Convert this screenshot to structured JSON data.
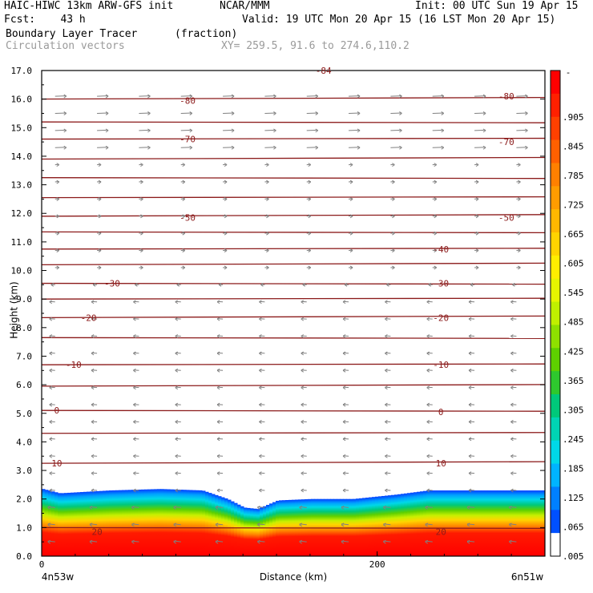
{
  "header": {
    "model": "HAIC-HIWC 13km ARW-GFS init",
    "org": "NCAR/MMM",
    "init": "Init: 00 UTC Sun 19 Apr 15",
    "fcst": "Fcst:    43 h",
    "valid": "Valid: 19 UTC Mon 20 Apr 15 (16 LST Mon 20 Apr 15)",
    "field": "Boundary Layer Tracer",
    "units": "(fraction)",
    "vectors": "Circulation vectors",
    "xy": "XY= 259.5, 91.6 to 274.6,110.2"
  },
  "chart_data": {
    "type": "heatmap",
    "ylabel": "Height (km)",
    "xlabel": "Distance (km)",
    "xlim": [
      0,
      300
    ],
    "ylim": [
      0,
      17
    ],
    "yticks": [
      "0.0",
      "1.0",
      "2.0",
      "3.0",
      "4.0",
      "5.0",
      "6.0",
      "7.0",
      "8.0",
      "9.0",
      "10.0",
      "11.0",
      "12.0",
      "13.0",
      "14.0",
      "15.0",
      "16.0",
      "17.0"
    ],
    "xticks": [
      {
        "value": 0,
        "label": "0"
      },
      {
        "value": 200,
        "label": "200"
      }
    ],
    "endpoint_labels": {
      "left": "4n53w",
      "right": "6n51w"
    },
    "colorbar": {
      "labels": [
        ".905",
        ".845",
        ".785",
        ".725",
        ".665",
        ".605",
        ".545",
        ".485",
        ".425",
        ".365",
        ".305",
        ".245",
        ".185",
        ".125",
        ".065",
        ".005"
      ],
      "top_label": "-",
      "colors": [
        "#ff0000",
        "#ff2000",
        "#ff4000",
        "#ff6000",
        "#ff8000",
        "#ff9c00",
        "#ffb800",
        "#ffd400",
        "#ffee00",
        "#e6f500",
        "#c0f000",
        "#8ee000",
        "#5ed000",
        "#2ec82e",
        "#00c87a",
        "#00d4b4",
        "#00d8e8",
        "#00b4ff",
        "#0080ff",
        "#0050ff",
        "#ffffff"
      ]
    },
    "boundary_layer_top": [
      [
        0,
        2.35
      ],
      [
        10,
        2.2
      ],
      [
        25,
        2.25
      ],
      [
        40,
        2.3
      ],
      [
        70,
        2.35
      ],
      [
        95,
        2.3
      ],
      [
        110,
        2.0
      ],
      [
        120,
        1.7
      ],
      [
        128,
        1.65
      ],
      [
        140,
        1.95
      ],
      [
        160,
        2.0
      ],
      [
        185,
        2.0
      ],
      [
        210,
        2.15
      ],
      [
        230,
        2.3
      ],
      [
        260,
        2.3
      ],
      [
        300,
        2.3
      ]
    ],
    "isotherm_labels": [
      {
        "label": "-84",
        "x": 168,
        "y": 17.0
      },
      {
        "label": "-80",
        "x": 87,
        "y": 15.95
      },
      {
        "label": "-80",
        "x": 277,
        "y": 16.1
      },
      {
        "label": "-70",
        "x": 87,
        "y": 14.6
      },
      {
        "label": "-70",
        "x": 277,
        "y": 14.5
      },
      {
        "label": "-50",
        "x": 87,
        "y": 11.85
      },
      {
        "label": "-50",
        "x": 277,
        "y": 11.85
      },
      {
        "label": "-40",
        "x": 238,
        "y": 10.75
      },
      {
        "label": "-30",
        "x": 42,
        "y": 9.55
      },
      {
        "label": "-30",
        "x": 238,
        "y": 9.55
      },
      {
        "label": "-20",
        "x": 28,
        "y": 8.35
      },
      {
        "label": "-20",
        "x": 238,
        "y": 8.35
      },
      {
        "label": "-10",
        "x": 19,
        "y": 6.7
      },
      {
        "label": "-10",
        "x": 238,
        "y": 6.7
      },
      {
        "label": "0",
        "x": 9,
        "y": 5.1
      },
      {
        "label": "0",
        "x": 238,
        "y": 5.05
      },
      {
        "label": "10",
        "x": 9,
        "y": 3.25
      },
      {
        "label": "10",
        "x": 238,
        "y": 3.25
      },
      {
        "label": "20",
        "x": 33,
        "y": 0.85
      },
      {
        "label": "20",
        "x": 238,
        "y": 0.85
      }
    ],
    "isotherm_levels_km": [
      16.0,
      15.2,
      14.6,
      13.9,
      13.25,
      12.55,
      11.9,
      11.35,
      10.75,
      10.2,
      9.55,
      9.0,
      8.35,
      7.65,
      6.7,
      5.95,
      5.1,
      4.3,
      3.25,
      1.0
    ]
  }
}
